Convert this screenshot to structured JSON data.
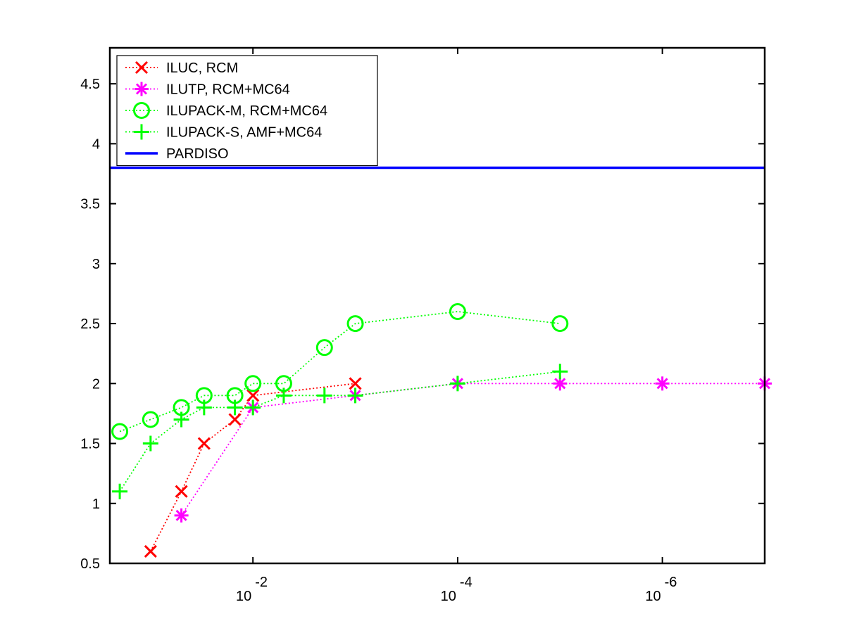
{
  "chart_data": {
    "type": "line",
    "title": "",
    "xlabel": "",
    "ylabel": "",
    "x_scale": "log",
    "x_reversed": true,
    "xlim": [
      0.25,
      1e-07
    ],
    "ylim": [
      0.5,
      4.8
    ],
    "grid": false,
    "legend_position": "top-left",
    "x_ticks": [
      {
        "value": 0.01,
        "base": "10",
        "exp": "-2"
      },
      {
        "value": 0.0001,
        "base": "10",
        "exp": "-4"
      },
      {
        "value": 1e-06,
        "base": "10",
        "exp": "-6"
      }
    ],
    "y_ticks": [
      {
        "value": 0.5,
        "label": "0.5"
      },
      {
        "value": 1,
        "label": "1"
      },
      {
        "value": 1.5,
        "label": "1.5"
      },
      {
        "value": 2,
        "label": "2"
      },
      {
        "value": 2.5,
        "label": "2.5"
      },
      {
        "value": 3,
        "label": "3"
      },
      {
        "value": 3.5,
        "label": "3.5"
      },
      {
        "value": 4,
        "label": "4"
      },
      {
        "value": 4.5,
        "label": "4.5"
      }
    ],
    "series": [
      {
        "name": "ILUC, RCM",
        "color": "#ff0000",
        "line": "dotted",
        "marker": "x",
        "points": [
          [
            0.1,
            0.6
          ],
          [
            0.05,
            1.1
          ],
          [
            0.03,
            1.5
          ],
          [
            0.015,
            1.7
          ],
          [
            0.01,
            1.9
          ],
          [
            0.001,
            2.0
          ]
        ]
      },
      {
        "name": "ILUTP, RCM+MC64",
        "color": "#ff00ff",
        "line": "dotted",
        "marker": "star",
        "points": [
          [
            0.05,
            0.9
          ],
          [
            0.01,
            1.8
          ],
          [
            0.001,
            1.9
          ],
          [
            0.0001,
            2.0
          ],
          [
            1e-05,
            2.0
          ],
          [
            1e-06,
            2.0
          ],
          [
            1e-07,
            2.0
          ]
        ]
      },
      {
        "name": "ILUPACK-M, RCM+MC64",
        "color": "#00ff00",
        "line": "dotted",
        "marker": "circle",
        "points": [
          [
            0.2,
            1.6
          ],
          [
            0.1,
            1.7
          ],
          [
            0.05,
            1.8
          ],
          [
            0.03,
            1.9
          ],
          [
            0.015,
            1.9
          ],
          [
            0.01,
            2.0
          ],
          [
            0.005,
            2.0
          ],
          [
            0.002,
            2.3
          ],
          [
            0.001,
            2.5
          ],
          [
            0.0001,
            2.6
          ],
          [
            1e-05,
            2.5
          ]
        ]
      },
      {
        "name": "ILUPACK-S, AMF+MC64",
        "color": "#00ff00",
        "line": "dotted",
        "marker": "plus",
        "points": [
          [
            0.2,
            1.1
          ],
          [
            0.1,
            1.5
          ],
          [
            0.05,
            1.7
          ],
          [
            0.03,
            1.8
          ],
          [
            0.015,
            1.8
          ],
          [
            0.01,
            1.8
          ],
          [
            0.005,
            1.9
          ],
          [
            0.002,
            1.9
          ],
          [
            0.001,
            1.9
          ],
          [
            0.0001,
            2.0
          ],
          [
            1e-05,
            2.1
          ]
        ]
      },
      {
        "name": "PARDISO",
        "color": "#0000ff",
        "line": "solid",
        "marker": "none",
        "constant_y": 3.8
      }
    ]
  }
}
